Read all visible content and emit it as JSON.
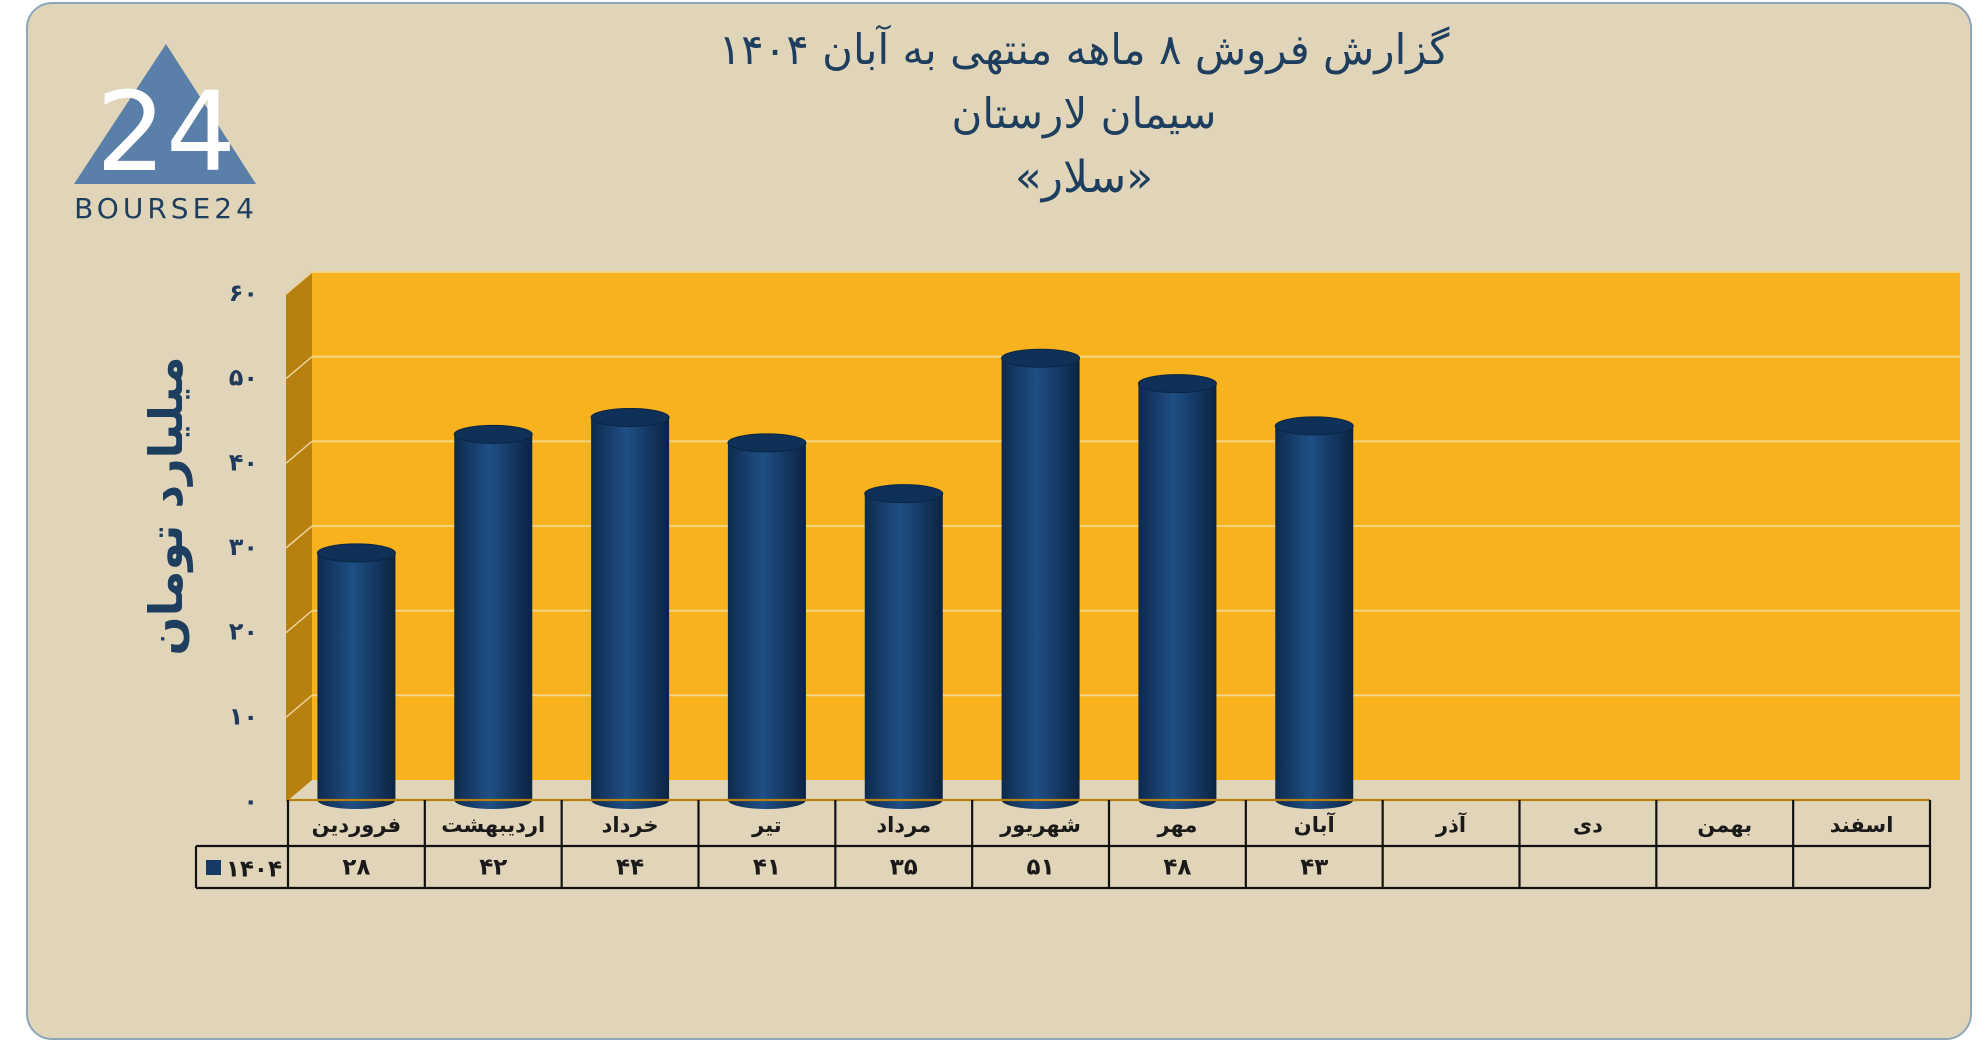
{
  "logo": {
    "mark": "24",
    "text": "BOURSE24",
    "color": "#5a7fa8"
  },
  "chart_data": {
    "type": "bar",
    "title": "گزارش  فروش ۸ ماهه منتهی به آبان ۱۴۰۴",
    "subtitle": "سیمان لارستان",
    "ticker": "«سلار»",
    "ylabel": "میلیارد تومان",
    "ylim": [
      0,
      60
    ],
    "yticks": [
      0,
      10,
      20,
      30,
      40,
      50,
      60
    ],
    "ytick_labels": [
      "۰",
      "۱۰",
      "۲۰",
      "۳۰",
      "۴۰",
      "۵۰",
      "۶۰"
    ],
    "categories": [
      "فروردین",
      "اردیبهشت",
      "خرداد",
      "تیر",
      "مرداد",
      "شهریور",
      "مهر",
      "آبان",
      "آذر",
      "دی",
      "بهمن",
      "اسفند"
    ],
    "series": [
      {
        "name": "۱۴۰۴",
        "values": [
          28,
          42,
          44,
          41,
          35,
          51,
          48,
          43,
          null,
          null,
          null,
          null
        ],
        "value_labels": [
          "۲۸",
          "۴۲",
          "۴۴",
          "۴۱",
          "۳۵",
          "۵۱",
          "۴۸",
          "۴۳",
          "",
          "",
          "",
          ""
        ],
        "color": "#163a66"
      }
    ],
    "grid": true,
    "legend": "data-table-left",
    "background_color": "#f7b21e",
    "side_wall_color": "#b8800f"
  }
}
